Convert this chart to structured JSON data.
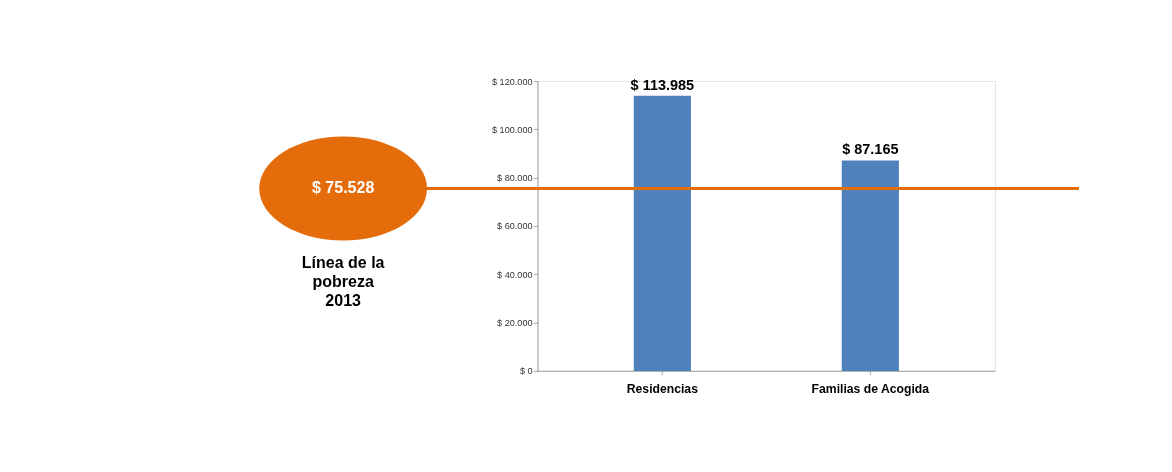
{
  "chart_data": {
    "type": "bar",
    "categories": [
      "Residencias",
      "Familias de Acogida"
    ],
    "values": [
      113985,
      87165
    ],
    "color": "#4f81bd",
    "value_labels": [
      "$ 113.985",
      "$ 87.165"
    ],
    "ylim": [
      0,
      120000
    ],
    "yticks": [
      {
        "value": 0,
        "label": "$ 0"
      },
      {
        "value": 20000,
        "label": "$ 20.000"
      },
      {
        "value": 40000,
        "label": "$ 40.000"
      },
      {
        "value": 60000,
        "label": "$ 60.000"
      },
      {
        "value": 80000,
        "label": "$ 80.000"
      },
      {
        "value": 100000,
        "label": "$ 100.000"
      },
      {
        "value": 120000,
        "label": "$ 120.000"
      }
    ],
    "ref_lines": [
      {
        "axis": "y",
        "value": 75528,
        "label": "$ 75.528",
        "color": "#e46c0a"
      }
    ],
    "annotations": [
      "Línea de la\npobreza\n2013"
    ],
    "grid": false
  }
}
